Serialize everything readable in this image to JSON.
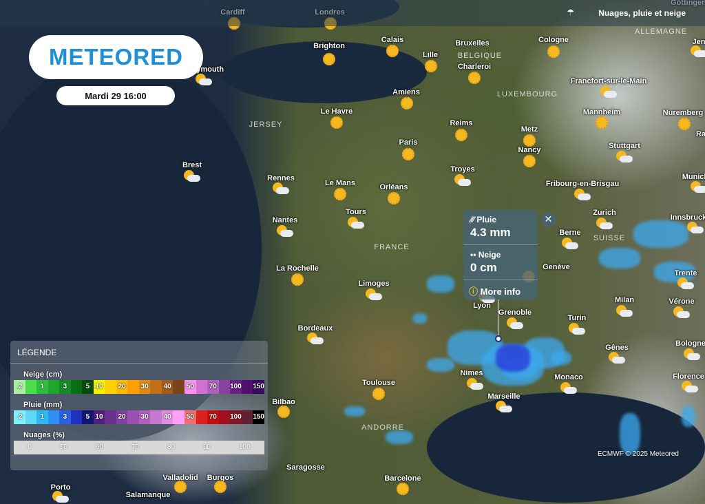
{
  "header": {
    "layer_icon": "cloud-rain-icon",
    "layer_name": "Nuages, pluie et neige"
  },
  "logo": "METEORED",
  "date": "Mardi 29 16:00",
  "regions": [
    "JERSEY",
    "BELGIQUE",
    "LUXEMBOURG",
    "ALLEMAGNE",
    "FRANCE",
    "SUISSE",
    "ANDORRE"
  ],
  "cities": [
    {
      "name": "Cardiff",
      "icon": "sun"
    },
    {
      "name": "Londres",
      "icon": "sun"
    },
    {
      "name": "Brighton",
      "icon": "sun"
    },
    {
      "name": "Calais",
      "icon": "sun"
    },
    {
      "name": "Lille",
      "icon": "sun"
    },
    {
      "name": "Bruxelles",
      "icon": "none"
    },
    {
      "name": "Charleroi",
      "icon": "sun"
    },
    {
      "name": "Cologne",
      "icon": "sun"
    },
    {
      "name": "Amiens",
      "icon": "sun"
    },
    {
      "name": "Le Havre",
      "icon": "sun"
    },
    {
      "name": "Reims",
      "icon": "sun"
    },
    {
      "name": "Metz",
      "icon": "sun"
    },
    {
      "name": "Nancy",
      "icon": "sun"
    },
    {
      "name": "Paris",
      "icon": "sun"
    },
    {
      "name": "Francfort-sur-le-Main",
      "icon": "cloud-sun"
    },
    {
      "name": "Mannheim",
      "icon": "sun"
    },
    {
      "name": "Nuremberg",
      "icon": "sun"
    },
    {
      "name": "Stuttgart",
      "icon": "cloud-sun"
    },
    {
      "name": "Brest",
      "icon": "cloud-sun"
    },
    {
      "name": "Rennes",
      "icon": "cloud-sun"
    },
    {
      "name": "Le Mans",
      "icon": "sun"
    },
    {
      "name": "Orléans",
      "icon": "sun"
    },
    {
      "name": "Troyes",
      "icon": "cloud-sun"
    },
    {
      "name": "Fribourg-en-Brisgau",
      "icon": "cloud-sun"
    },
    {
      "name": "Tours",
      "icon": "cloud-sun"
    },
    {
      "name": "Nantes",
      "icon": "cloud-sun"
    },
    {
      "name": "Zurich",
      "icon": "cloud-sun"
    },
    {
      "name": "Berne",
      "icon": "cloud-sun"
    },
    {
      "name": "La Rochelle",
      "icon": "sun"
    },
    {
      "name": "Genève",
      "icon": "sun"
    },
    {
      "name": "Limoges",
      "icon": "cloud-sun"
    },
    {
      "name": "Lyon",
      "icon": "cloud-sun"
    },
    {
      "name": "Milan",
      "icon": "cloud-sun"
    },
    {
      "name": "Vérone",
      "icon": "cloud-sun"
    },
    {
      "name": "Trente",
      "icon": "cloud-sun"
    },
    {
      "name": "Innsbruck",
      "icon": "cloud-sun"
    },
    {
      "name": "Bordeaux",
      "icon": "cloud-sun"
    },
    {
      "name": "Grenoble",
      "icon": "cloud-sun"
    },
    {
      "name": "Turin",
      "icon": "cloud-sun"
    },
    {
      "name": "Gênes",
      "icon": "cloud-sun"
    },
    {
      "name": "Bologne",
      "icon": "cloud-sun"
    },
    {
      "name": "Florence",
      "icon": "cloud-sun"
    },
    {
      "name": "Nimes",
      "icon": "cloud-sun"
    },
    {
      "name": "Monaco",
      "icon": "cloud-sun"
    },
    {
      "name": "Marseille",
      "icon": "cloud-sun"
    },
    {
      "name": "Toulouse",
      "icon": "sun"
    },
    {
      "name": "Bilbao",
      "icon": "sun"
    },
    {
      "name": "Burgos",
      "icon": "sun"
    },
    {
      "name": "Saragosse",
      "icon": "none"
    },
    {
      "name": "Barcelone",
      "icon": "sun"
    },
    {
      "name": "Valladolid",
      "icon": "sun"
    },
    {
      "name": "Porto",
      "icon": "cloud-sun"
    },
    {
      "name": "Salamanque",
      "icon": "none"
    },
    {
      "name": "Munich",
      "icon": "cloud-sun"
    },
    {
      "name": "Jena",
      "icon": "cloud-sun"
    },
    {
      "name": "Göttingen",
      "icon": "none"
    },
    {
      "name": "Ra",
      "icon": "none"
    },
    {
      "name": "Plymouth",
      "icon": "cloud-sun"
    }
  ],
  "popup": {
    "rain_icon": "rain-icon",
    "rain_label": "Pluie",
    "rain_value": "4.3 mm",
    "snow_icon": "snow-icon",
    "snow_label": "Neige",
    "snow_value": "0 cm",
    "more_icon": "info-icon",
    "more_label": "More info",
    "close": "✕"
  },
  "legend": {
    "title": "LÉGENDE",
    "snow": {
      "label": "Neige (cm)",
      "steps": [
        ".2",
        "",
        "1",
        "",
        "3",
        "",
        "5",
        "10",
        "",
        "20",
        "",
        "30",
        "",
        "40",
        "",
        "50",
        "",
        "70",
        "",
        "100",
        "",
        "150"
      ],
      "colors": [
        "#a8f0a0",
        "#4ade4a",
        "#2cc03a",
        "#1fa62e",
        "#148a24",
        "#0a6e18",
        "#044a0e",
        "#f5f000",
        "#ffd000",
        "#ffb800",
        "#ffa000",
        "#e08a10",
        "#c07018",
        "#a05c18",
        "#7a4418",
        "#ff90f0",
        "#d070d0",
        "#b060c0",
        "#8a40a0",
        "#6a2080",
        "#501070",
        "#3a0860"
      ]
    },
    "rain": {
      "label": "Pluie (mm)",
      "steps": [
        ".2",
        "",
        "1",
        "",
        "3",
        "",
        "5",
        "10",
        "",
        "20",
        "",
        "30",
        "",
        "40",
        "",
        "50",
        "",
        "70",
        "",
        "100",
        "",
        "150"
      ],
      "colors": [
        "#80f0f8",
        "#60d8f8",
        "#30b8f0",
        "#3090f0",
        "#2860e0",
        "#2030c0",
        "#101870",
        "#502080",
        "#6a3090",
        "#8040a0",
        "#9a50b0",
        "#b060c0",
        "#c878d0",
        "#e090e0",
        "#ffa0f8",
        "#f07070",
        "#e02020",
        "#c01010",
        "#a01020",
        "#801828",
        "#602030",
        "#000000"
      ]
    },
    "clouds": {
      "label": "Nuages (%)",
      "steps": [
        "0",
        "50",
        "60",
        "70",
        "80",
        "90",
        "100"
      ]
    }
  },
  "credit": "ECMWF © 2025 Meteored"
}
